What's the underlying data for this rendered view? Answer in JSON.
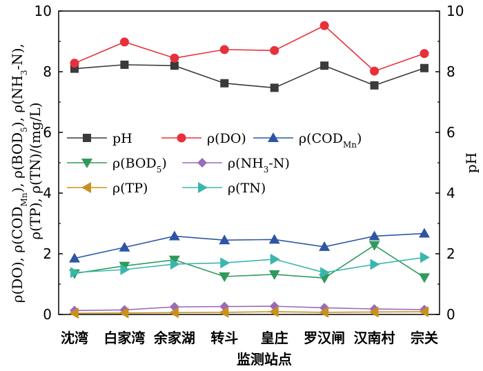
{
  "chart_data": {
    "type": "line",
    "categories": [
      "沈湾",
      "白家湾",
      "余家湖",
      "转斗",
      "皇庄",
      "罗汉闸",
      "汉南村",
      "宗关"
    ],
    "xlabel": "监测站点",
    "ylabel": "ρ(DO), ρ(COD_Mn), ρ(BOD_5), ρ(NH_3-N), ρ(TP), ρ(TN)/(mg/L)",
    "ylabel_right": "pH",
    "ylim": [
      0,
      10
    ],
    "ylim_right": [
      0,
      10
    ],
    "yticks": [
      "0",
      "2",
      "4",
      "6",
      "8",
      "10"
    ],
    "grid": false,
    "legend_position": "inside-middle",
    "series": [
      {
        "name": "pH",
        "label_main": "pH",
        "label_sub": "",
        "marker": "square",
        "color": "#3a3a3a",
        "axis": "right",
        "values": [
          8.1,
          8.23,
          8.2,
          7.62,
          7.47,
          8.2,
          7.55,
          8.12
        ]
      },
      {
        "name": "ρ(DO)",
        "label_main": "ρ(DO)",
        "label_sub": "",
        "marker": "circle",
        "color": "#e8303a",
        "axis": "left",
        "values": [
          8.28,
          8.98,
          8.45,
          8.73,
          8.7,
          9.52,
          8.02,
          8.6
        ]
      },
      {
        "name": "ρ(COD_Mn)",
        "label_main": "ρ(COD",
        "label_sub": "Mn",
        "label_end": ")",
        "marker": "triangle-up",
        "color": "#2e55a4",
        "axis": "left",
        "values": [
          1.85,
          2.21,
          2.58,
          2.45,
          2.47,
          2.23,
          2.58,
          2.67
        ]
      },
      {
        "name": "ρ(BOD_5)",
        "label_main": "ρ(BOD",
        "label_sub": "5",
        "label_end": ")",
        "marker": "triangle-down",
        "color": "#2f9a5a",
        "axis": "left",
        "values": [
          1.35,
          1.6,
          1.8,
          1.25,
          1.32,
          1.2,
          2.28,
          1.22
        ]
      },
      {
        "name": "ρ(NH_3-N)",
        "label_main": "ρ(NH",
        "label_sub": "3",
        "label_end": "-N)",
        "marker": "diamond",
        "color": "#9b6ab8",
        "axis": "left",
        "values": [
          0.13,
          0.15,
          0.25,
          0.26,
          0.27,
          0.22,
          0.18,
          0.16
        ]
      },
      {
        "name": "ρ(TP)",
        "label_main": "ρ(TP)",
        "label_sub": "",
        "marker": "triangle-left",
        "color": "#c8901c",
        "axis": "left",
        "values": [
          0.04,
          0.05,
          0.06,
          0.07,
          0.09,
          0.07,
          0.08,
          0.09
        ]
      },
      {
        "name": "ρ(TN)",
        "label_main": "ρ(TN)",
        "label_sub": "",
        "marker": "triangle-right",
        "color": "#3ab6ad",
        "axis": "left",
        "values": [
          1.38,
          1.48,
          1.66,
          1.7,
          1.82,
          1.38,
          1.65,
          1.88
        ]
      }
    ]
  }
}
